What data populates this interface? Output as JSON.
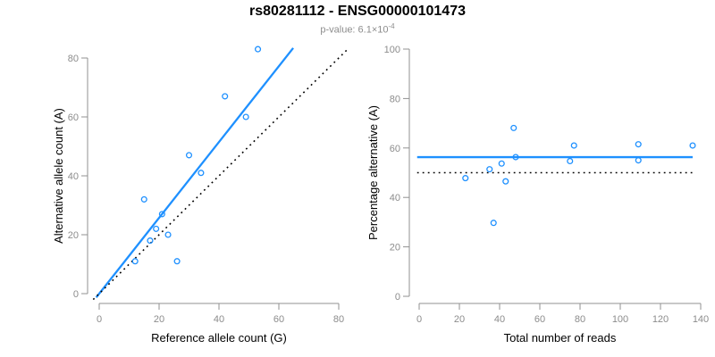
{
  "header": {
    "title": "rs80281112 - ENSG00000101473",
    "p_text": "p-value: 6.1×10",
    "p_exponent": "-4"
  },
  "colors": {
    "accent_blue": "#1E90FF",
    "dashed_black": "#000000",
    "axis_gray": "#909090",
    "tick_label_gray": "#8c8c8c",
    "title_black": "#000000",
    "subtitle_gray": "#8c8c8c"
  },
  "chart_data": [
    {
      "type": "scatter",
      "xlabel": "Reference allele count (G)",
      "ylabel": "Alternative allele count (A)",
      "xlim": [
        0,
        80
      ],
      "ylim": [
        0,
        80
      ],
      "xticks": [
        0,
        20,
        40,
        60,
        80
      ],
      "yticks": [
        0,
        20,
        40,
        60,
        80
      ],
      "grid": false,
      "legend": null,
      "points": {
        "x": [
          12,
          15,
          17,
          19,
          21,
          23,
          26,
          30,
          34,
          42,
          49,
          53
        ],
        "y": [
          11,
          32,
          18,
          22,
          27,
          20,
          11,
          47,
          41,
          67,
          60,
          83
        ]
      },
      "lines": [
        {
          "name": "regression-line",
          "style": "solid",
          "color_key": "accent_blue",
          "slope": 1.287,
          "intercept": 0,
          "x_range": [
            -1,
            64.8
          ]
        },
        {
          "name": "identity-line",
          "style": "dotted",
          "color_key": "dashed_black",
          "slope": 1,
          "intercept": 0,
          "x_range": [
            -2,
            83
          ]
        }
      ]
    },
    {
      "type": "scatter",
      "xlabel": "Total number of reads",
      "ylabel": "Percentage alternative (A)",
      "xlim": [
        0,
        140
      ],
      "ylim": [
        0,
        100
      ],
      "xticks": [
        0,
        20,
        40,
        60,
        80,
        100,
        120,
        140
      ],
      "yticks": [
        0,
        20,
        40,
        60,
        80,
        100
      ],
      "grid": false,
      "legend": null,
      "points": {
        "x": [
          23,
          47,
          35,
          41,
          48,
          43,
          37,
          77,
          75,
          109,
          109,
          136
        ],
        "y": [
          47.8,
          68.1,
          51.4,
          53.7,
          56.3,
          46.5,
          29.7,
          61.0,
          54.7,
          61.5,
          55.0,
          61.0
        ]
      },
      "lines": [
        {
          "name": "overall-percentage-line",
          "style": "solid",
          "color_key": "accent_blue",
          "hline": 56.3,
          "x_range": [
            -1,
            136
          ]
        },
        {
          "name": "fifty-percent-line",
          "style": "dotted",
          "color_key": "dashed_black",
          "hline": 50,
          "x_range": [
            -1,
            136
          ]
        }
      ]
    }
  ]
}
